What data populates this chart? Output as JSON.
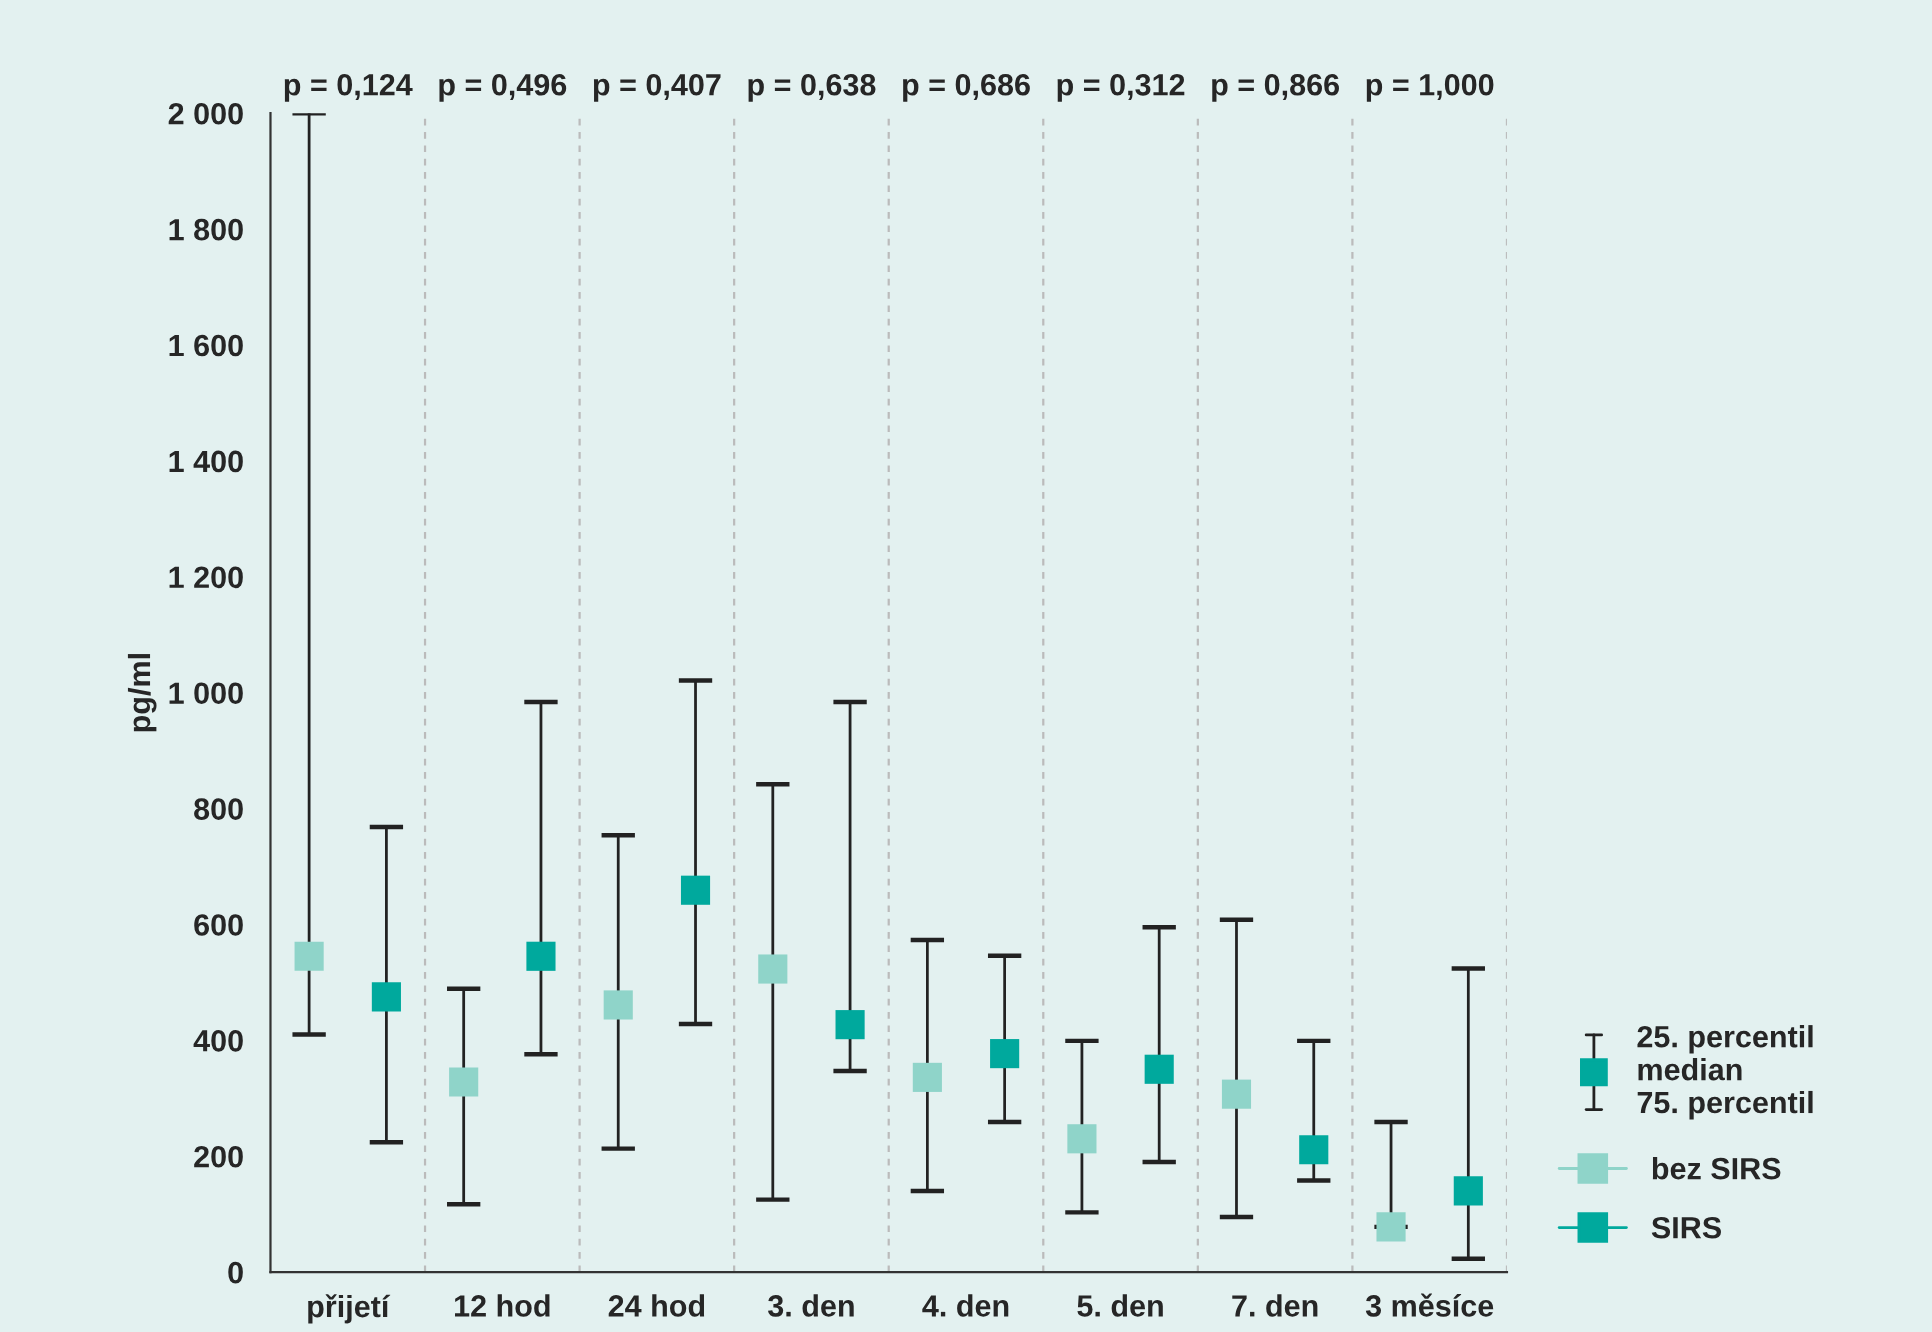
{
  "chart_data": {
    "type": "scatter",
    "ylabel": "pg/ml",
    "categories": [
      "přijetí",
      "12 hod",
      "24 hod",
      "3. den",
      "4. den",
      "5. den",
      "7. den",
      "3 měsíce"
    ],
    "series": [
      {
        "name": "bez SIRS",
        "color": "#8fd4c9",
        "values": [
          545,
          328,
          461,
          523,
          336,
          230,
          307,
          78
        ],
        "errors": [
          [
            410,
            2000
          ],
          [
            117,
            489
          ],
          [
            213,
            754
          ],
          [
            125,
            842
          ],
          [
            140,
            573
          ],
          [
            103,
            399
          ],
          [
            95,
            608
          ],
          [
            78,
            259
          ]
        ]
      },
      {
        "name": "SIRS",
        "color": "#00a99d",
        "values": [
          475,
          545,
          659,
          427,
          377,
          350,
          211,
          140
        ],
        "errors": [
          [
            224,
            768
          ],
          [
            376,
            984
          ],
          [
            428,
            1021
          ],
          [
            347,
            984
          ],
          [
            259,
            546
          ],
          [
            190,
            595
          ],
          [
            158,
            399
          ],
          [
            23,
            524
          ]
        ]
      }
    ],
    "ylim": [
      0,
      2000
    ],
    "yticks": [
      0,
      200,
      400,
      600,
      800,
      {
        "value": 1000,
        "label": "1 000"
      },
      {
        "value": 1200,
        "label": "1 200"
      },
      {
        "value": 1400,
        "label": "1 400"
      },
      {
        "value": 1600,
        "label": "1 600"
      },
      {
        "value": 1800,
        "label": "1 800"
      },
      {
        "value": 2000,
        "label": "2 000"
      }
    ],
    "marker": "square",
    "grid": "x",
    "legend": "bottom right",
    "annotations": [
      "p = 0,124",
      "p = 0,496",
      "p = 0,407",
      "p = 0,638",
      "p = 0,686",
      "p = 0,312",
      "p = 0,866",
      "p = 1,000",
      "25. percentil\nmedian\n75. percentil"
    ]
  }
}
